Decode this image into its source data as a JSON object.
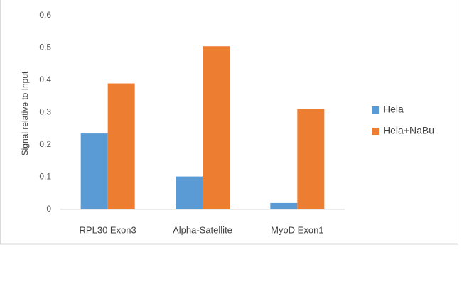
{
  "chart_data": {
    "type": "bar",
    "y_label": "Signal relative to Input",
    "categories": [
      "RPL30 Exon3",
      "Alpha-Satellite",
      "MyoD Exon1"
    ],
    "series": [
      {
        "name": "Hela",
        "color": "#5b9bd5",
        "values": [
          0.235,
          0.102,
          0.02
        ]
      },
      {
        "name": "Hela+NaBu",
        "color": "#ed7d31",
        "values": [
          0.39,
          0.505,
          0.31
        ]
      }
    ],
    "ylim": [
      0,
      0.6
    ],
    "yticks": [
      0,
      0.1,
      0.2,
      0.3,
      0.4,
      0.5,
      0.6
    ],
    "grid": false,
    "legend": "right"
  }
}
